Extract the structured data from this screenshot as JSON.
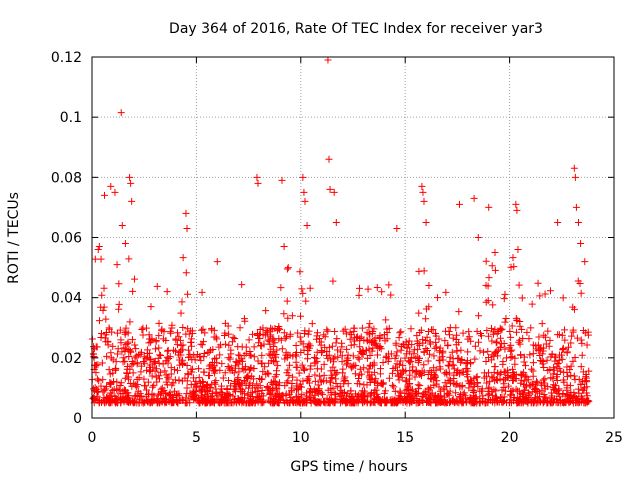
{
  "chart_data": {
    "type": "scatter",
    "title": "Day 364 of 2016, Rate Of TEC Index for receiver yar3",
    "xlabel": "GPS time / hours",
    "ylabel": "ROTI / TECUs",
    "xlim": [
      0,
      25
    ],
    "ylim": [
      0,
      0.12
    ],
    "x_ticks": [
      0,
      5,
      10,
      15,
      20,
      25
    ],
    "x_tick_labels": [
      "0",
      "5",
      "10",
      "15",
      "20",
      "25"
    ],
    "y_ticks": [
      0,
      0.02,
      0.04,
      0.06,
      0.08,
      0.1,
      0.12
    ],
    "y_tick_labels": [
      "0",
      "0.02",
      "0.04",
      "0.06",
      "0.08",
      "0.1",
      "0.12"
    ],
    "grid": true,
    "marker": "+",
    "marker_color": "#ff0000",
    "series": [
      {
        "name": "ROTI",
        "note": "dense band mostly 0.005-0.02 TECU/min across 0-23.8 h; notable peaks listed",
        "x": [
          0.3,
          0.35,
          0.6,
          0.9,
          1.1,
          1.2,
          1.4,
          1.45,
          1.6,
          1.8,
          1.85,
          1.9,
          3.6,
          4.5,
          4.55,
          6.0,
          7.9,
          7.95,
          9.1,
          9.2,
          9.4,
          10.1,
          10.15,
          10.2,
          10.3,
          11.3,
          11.35,
          11.4,
          11.6,
          11.7,
          14.6,
          15.8,
          15.85,
          15.9,
          16.0,
          17.6,
          18.3,
          18.5,
          19.0,
          19.3,
          20.3,
          20.35,
          20.4,
          22.3,
          23.1,
          23.15,
          23.2,
          23.3,
          23.4,
          23.6
        ],
        "y": [
          0.056,
          0.057,
          0.074,
          0.077,
          0.075,
          0.051,
          0.1015,
          0.064,
          0.058,
          0.08,
          0.078,
          0.072,
          0.042,
          0.068,
          0.063,
          0.052,
          0.08,
          0.078,
          0.079,
          0.057,
          0.05,
          0.08,
          0.075,
          0.072,
          0.064,
          0.119,
          0.086,
          0.076,
          0.075,
          0.065,
          0.063,
          0.077,
          0.075,
          0.072,
          0.065,
          0.071,
          0.073,
          0.06,
          0.07,
          0.055,
          0.071,
          0.069,
          0.056,
          0.065,
          0.083,
          0.08,
          0.07,
          0.065,
          0.058,
          0.052
        ]
      }
    ]
  }
}
